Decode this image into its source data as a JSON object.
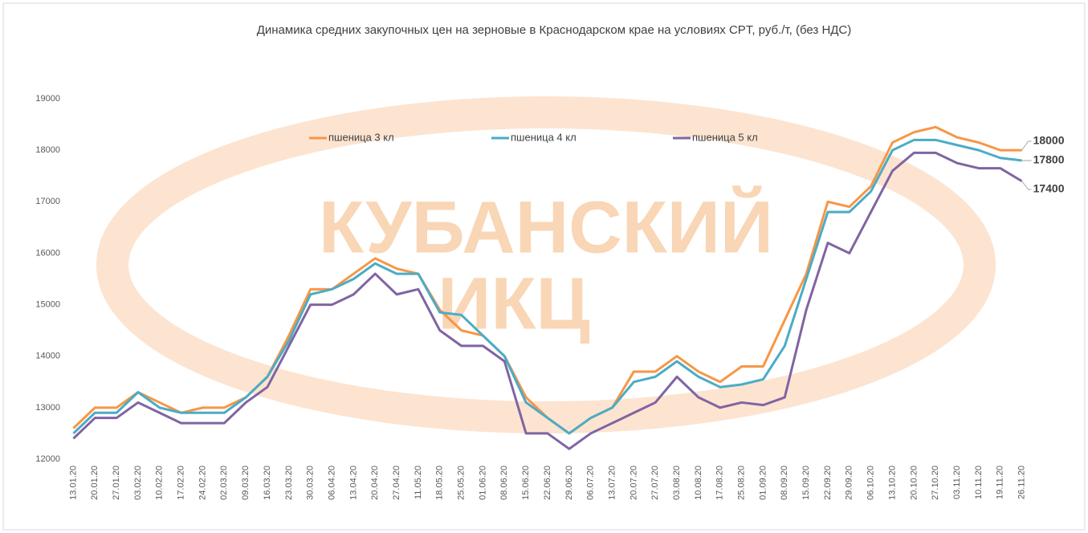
{
  "chart_data": {
    "type": "line",
    "title": "Динамика средних закупочных цен на зерновые в Краснодарском крае на условиях CPT, руб./т, (без НДС)",
    "watermark": [
      "КУБАНСКИЙ",
      "ИКЦ"
    ],
    "categories": [
      "13.01.20",
      "20.01.20",
      "27.01.20",
      "03.02.20",
      "10.02.20",
      "17.02.20",
      "24.02.20",
      "02.03.20",
      "09.03.20",
      "16.03.20",
      "23.03.20",
      "30.03.20",
      "06.04.20",
      "13.04.20",
      "20.04.20",
      "27.04.20",
      "11.05.20",
      "18.05.20",
      "25.05.20",
      "01.06.20",
      "08.06.20",
      "15.06.20",
      "22.06.20",
      "29.06.20",
      "06.07.20",
      "13.07.20",
      "20.07.20",
      "27.07.20",
      "03.08.20",
      "10.08.20",
      "17.08.20",
      "25.08.20",
      "01.09.20",
      "08.09.20",
      "15.09.20",
      "22.09.20",
      "29.09.20",
      "06.10.20",
      "13.10.20",
      "20.10.20",
      "27.10.20",
      "03.11.20",
      "10.11.20",
      "19.11.20",
      "26.11.20"
    ],
    "series": [
      {
        "name": "пшеница 3 кл",
        "color": "#f79646",
        "values": [
          12600,
          13000,
          13000,
          13300,
          13100,
          12900,
          13000,
          13000,
          13200,
          13600,
          14400,
          15300,
          15300,
          15600,
          15900,
          15700,
          15600,
          14900,
          14500,
          14400,
          14000,
          13200,
          12800,
          12500,
          12800,
          13000,
          13700,
          13700,
          14000,
          13700,
          13500,
          13800,
          13800,
          14700,
          15600,
          17000,
          16900,
          17300,
          18150,
          18350,
          18450,
          18250,
          18150,
          18000,
          18000
        ]
      },
      {
        "name": "пшеница 4 кл",
        "color": "#4bacc6",
        "values": [
          12500,
          12900,
          12900,
          13300,
          13000,
          12900,
          12900,
          12900,
          13200,
          13600,
          14300,
          15200,
          15300,
          15500,
          15800,
          15600,
          15600,
          14850,
          14800,
          14400,
          14000,
          13100,
          12800,
          12500,
          12800,
          13000,
          13500,
          13600,
          13900,
          13600,
          13400,
          13450,
          13550,
          14200,
          15500,
          16800,
          16800,
          17200,
          18000,
          18200,
          18200,
          18100,
          18000,
          17850,
          17800
        ]
      },
      {
        "name": "пшеница 5 кл",
        "color": "#8064a2",
        "values": [
          12400,
          12800,
          12800,
          13100,
          12900,
          12700,
          12700,
          12700,
          13100,
          13400,
          14200,
          15000,
          15000,
          15200,
          15600,
          15200,
          15300,
          14500,
          14200,
          14200,
          13900,
          12500,
          12500,
          12200,
          12500,
          12700,
          12900,
          13100,
          13600,
          13200,
          13000,
          13100,
          13050,
          13200,
          14900,
          16200,
          16000,
          16800,
          17600,
          17950,
          17950,
          17750,
          17650,
          17650,
          17400
        ]
      }
    ],
    "ylim": [
      12000,
      19000
    ],
    "yticks": [
      12000,
      13000,
      14000,
      15000,
      16000,
      17000,
      18000,
      19000
    ],
    "grid": false
  }
}
